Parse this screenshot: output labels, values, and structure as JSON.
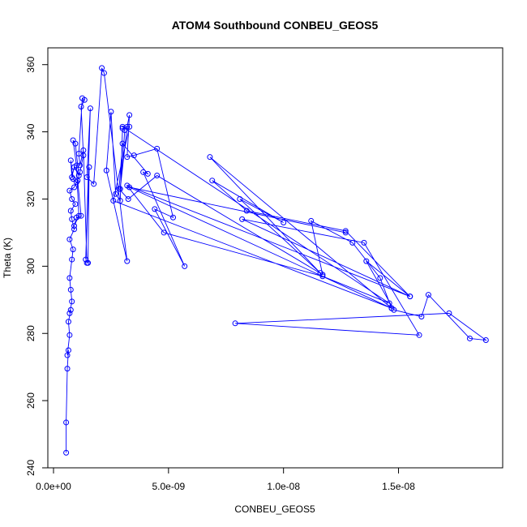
{
  "chart_data": {
    "type": "line",
    "title": "ATOM4 Southbound CONBEU_GEOS5",
    "xlabel": "CONBEU_GEOS5",
    "ylabel": "Theta (K)",
    "xlim": [
      0,
      1.9e-08
    ],
    "ylim": [
      240,
      365
    ],
    "x_ticks": [
      {
        "value": 0,
        "label": "0.0e+00"
      },
      {
        "value": 5e-09,
        "label": "5.0e-09"
      },
      {
        "value": 1e-08,
        "label": "1.0e-08"
      },
      {
        "value": 1.5e-08,
        "label": "1.5e-08"
      }
    ],
    "y_ticks": [
      {
        "value": 240,
        "label": "240"
      },
      {
        "value": 260,
        "label": "260"
      },
      {
        "value": 280,
        "label": "280"
      },
      {
        "value": 300,
        "label": "300"
      },
      {
        "value": 320,
        "label": "320"
      },
      {
        "value": 340,
        "label": "340"
      },
      {
        "value": 360,
        "label": "360"
      }
    ],
    "grid": false,
    "series_color": "#0000ff",
    "series": [
      {
        "x": [
          5.5e-10,
          5.5e-10,
          6e-10,
          6.5e-10,
          6e-10,
          7e-10,
          6.5e-10,
          7.5e-10,
          7e-10,
          8e-10,
          7.5e-10,
          7e-10,
          8e-10,
          8.5e-10,
          7e-10,
          9e-10,
          8e-10,
          7.5e-10,
          9.5e-10,
          8e-10,
          7e-10,
          9e-10,
          1e-09,
          8.5e-10,
          7.5e-10,
          8e-10,
          9e-10,
          1.1e-09,
          9.5e-10,
          8.5e-10,
          1e-09,
          1.1e-09,
          9e-10,
          1e-09,
          1.2e-09,
          1.05e-09,
          1.15e-09,
          1.3e-09,
          1.2e-09,
          1.35e-09,
          1.25e-09,
          1.1e-09,
          1.15e-09,
          1.3e-09,
          1.45e-09,
          1.5e-09,
          1.55e-09,
          1.4e-09,
          1.6e-09,
          1.45e-09,
          1.75e-09,
          2.1e-09,
          2.2e-09,
          3.2e-09,
          2.3e-09,
          2.5e-09,
          2.7e-09,
          2.9e-09,
          3e-09,
          3.1e-09,
          2.9e-09,
          3.2e-09,
          3.3e-09,
          3.2e-09,
          3.5e-09,
          4.5e-09,
          5.2e-09,
          4.4e-09,
          5.7e-09,
          3.9e-09,
          4.1e-09,
          3e-09,
          2.85e-09,
          3.25e-09,
          4.5e-09,
          1.17e-08,
          1.12e-08,
          1.3e-08,
          1.42e-08,
          1.47e-08,
          6.8e-09,
          1.16e-08,
          8.1e-09,
          1e-08,
          6.9e-09,
          8.4e-09,
          1.27e-08,
          1.55e-08,
          8.2e-09,
          1.35e-08,
          1.59e-08,
          7.9e-09,
          1.72e-08,
          1.88e-08,
          1.81e-08,
          1.63e-08,
          1.6e-08,
          1.48e-08,
          1.36e-08,
          1.55e-08,
          3.2e-09,
          4.8e-09,
          1.17e-08,
          1.46e-08,
          3e-09,
          3.3e-09,
          2.6e-09,
          1.47e-08,
          3.3e-09,
          1.27e-08
        ],
        "y": [
          244.5,
          253.5,
          269.5,
          275,
          273.5,
          279.5,
          283.5,
          287,
          286,
          289.5,
          293,
          296.5,
          302,
          305,
          308,
          311,
          314,
          316.5,
          318.5,
          320,
          322.5,
          323.5,
          325,
          326,
          331.5,
          326.5,
          329.5,
          327,
          336.5,
          337.5,
          330,
          315,
          312,
          314.5,
          315,
          325.5,
          328,
          333,
          347.5,
          349.5,
          350,
          333.5,
          330,
          334.5,
          301,
          301,
          329.5,
          302,
          347,
          326.5,
          324.5,
          359,
          357.5,
          301.5,
          328.5,
          346,
          321.5,
          319.5,
          341,
          340.5,
          323,
          341.5,
          345,
          332.5,
          333,
          335,
          314.5,
          317,
          300,
          328,
          327.5,
          336.5,
          323,
          320,
          327,
          297.5,
          313.5,
          307,
          296.5,
          287.5,
          332.5,
          298,
          320,
          313,
          325.5,
          316.5,
          310.5,
          291,
          314,
          307,
          279.5,
          283,
          286,
          278,
          278.5,
          291.5,
          285,
          287,
          301.5,
          291,
          324,
          310,
          297,
          289,
          341.5,
          341.5,
          319.5,
          287.5,
          323.5,
          310
        ]
      }
    ]
  }
}
